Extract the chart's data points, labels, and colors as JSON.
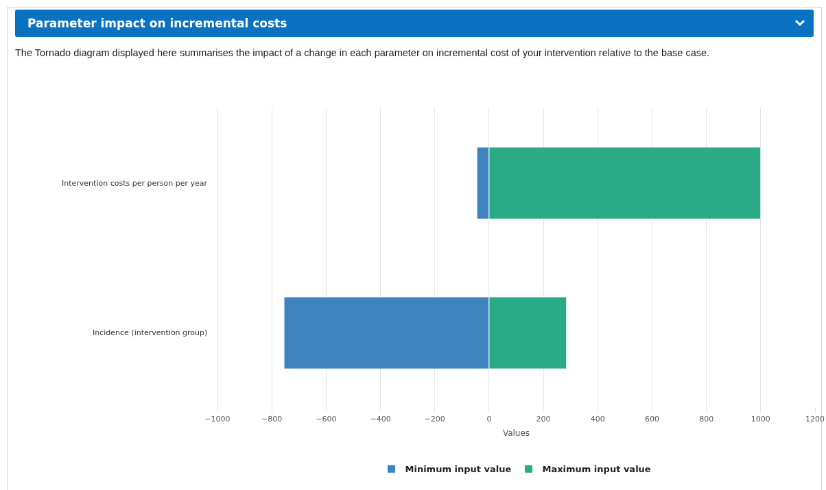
{
  "chart_data": {
    "type": "bar",
    "orientation": "horizontal",
    "stacked": true,
    "title": "Parameter impact on incremental costs",
    "subtitle": "The Tornado diagram displayed here summarises the impact of a change in each parameter on incremental cost of your intervention relative to the base case.",
    "xlabel": "Values",
    "categories": [
      "Intervention costs per person per year",
      "Incidence (intervention group)"
    ],
    "series": [
      {
        "name": "Minimum input value",
        "color": "#3f84c1",
        "values": [
          -45,
          -755
        ]
      },
      {
        "name": "Maximum input value",
        "color": "#2aab86",
        "values": [
          1000,
          285
        ]
      }
    ],
    "xlim": [
      -1000,
      1200
    ],
    "xticks": [
      -1000,
      -800,
      -600,
      -400,
      -200,
      0,
      200,
      400,
      600,
      800,
      1000,
      1200
    ],
    "grid": "x",
    "legend": "bottom"
  }
}
